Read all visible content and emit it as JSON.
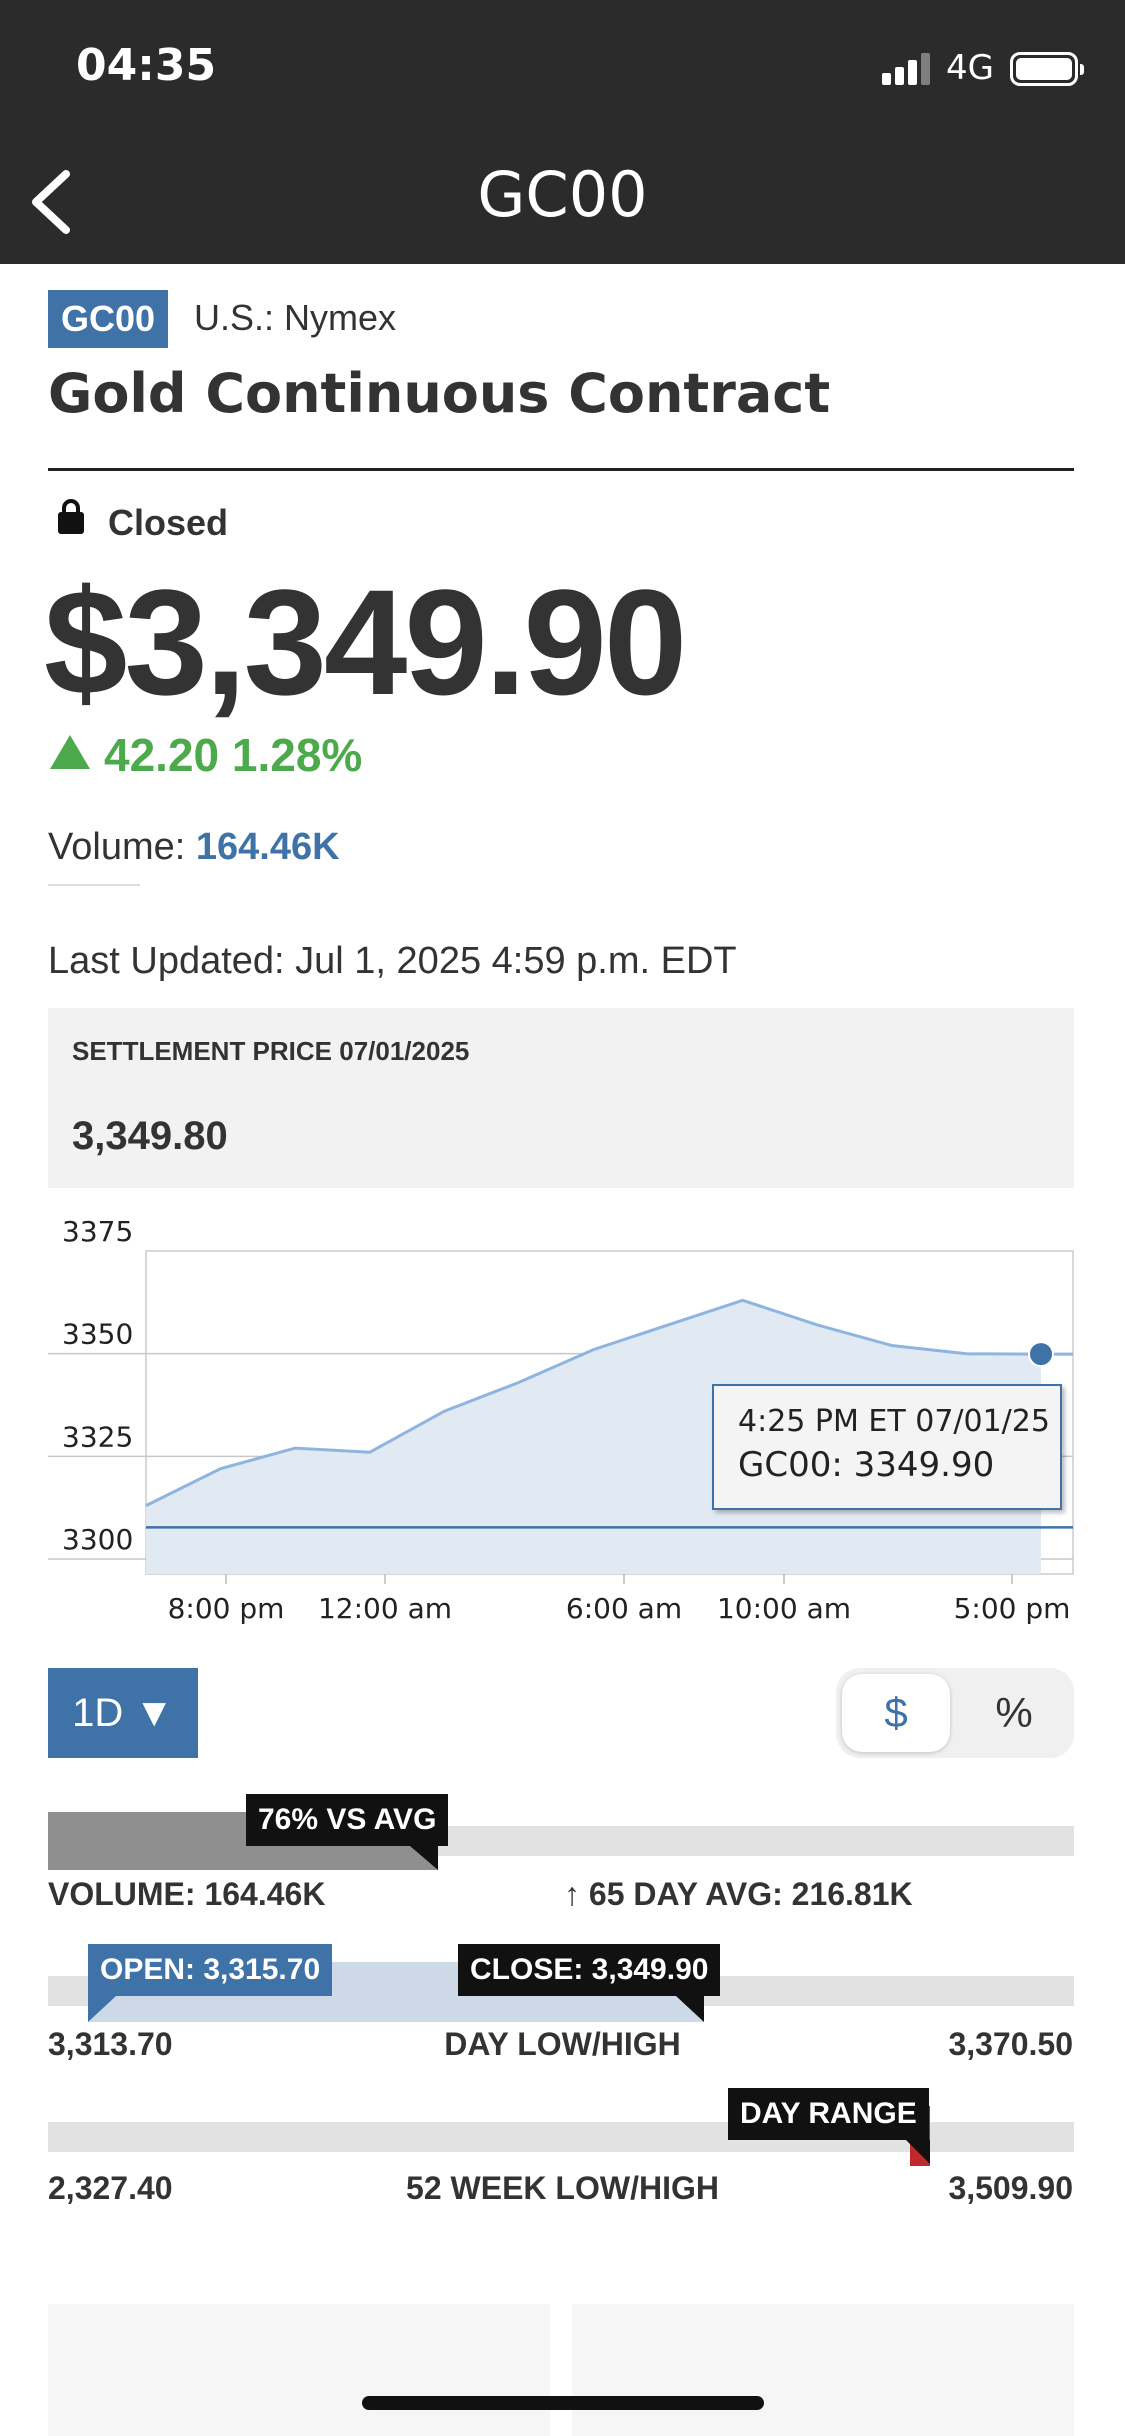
{
  "status_bar": {
    "time": "04:35",
    "network": "4G"
  },
  "nav": {
    "title": "GC00"
  },
  "instrument": {
    "ticker": "GC00",
    "exchange": "U.S.: Nymex",
    "name": "Gold Continuous Contract",
    "market_state": "Closed",
    "price": "$3,349.90",
    "change": "42.20",
    "change_pct": "1.28%",
    "volume_label": "Volume: ",
    "volume_value": "164.46K",
    "last_updated": "Last Updated: Jul 1, 2025 4:59 p.m. EDT"
  },
  "settlement": {
    "label": "SETTLEMENT PRICE 07/01/2025",
    "value": "3,349.80"
  },
  "chart_data": {
    "type": "area",
    "series": [
      {
        "name": "GC00",
        "x": [
          "6:00 pm",
          "8:00 pm",
          "10:00 pm",
          "12:00 am",
          "2:00 am",
          "4:00 am",
          "6:00 am",
          "8:00 am",
          "10:00 am",
          "12:00 pm",
          "2:00 pm",
          "4:25 pm",
          "5:00 pm"
        ],
        "values": [
          3313,
          3322,
          3327,
          3326,
          3336,
          3343,
          3351,
          3357,
          3363,
          3357,
          3352,
          3350,
          3349.9
        ]
      }
    ],
    "x_ticks": [
      "8:00 pm",
      "12:00 am",
      "6:00 am",
      "10:00 am",
      "5:00 pm"
    ],
    "y_ticks": [
      "3375",
      "3350",
      "3325",
      "3300"
    ],
    "ylim": [
      3300,
      3375
    ],
    "baseline": 3307.7,
    "tooltip": {
      "time": "4:25 PM ET 07/01/25",
      "value": "GC00: 3349.90"
    },
    "colors": {
      "line": "#8eb4df",
      "fill": "#e1e9f2",
      "baseline": "#3f72a6"
    }
  },
  "controls": {
    "range": "1D ▼",
    "toggle_dollar": "$",
    "toggle_pct": "%"
  },
  "stats": {
    "vol_flag": "76% VS AVG",
    "vol_fraction": 0.76,
    "volume_label": "VOLUME: 164.46K",
    "avg_label": "↑ 65 DAY AVG: 216.81K",
    "open_flag": "OPEN: 3,315.70",
    "close_flag": "CLOSE: 3,349.90",
    "day_low": "3,313.70",
    "day_mid": "DAY LOW/HIGH",
    "day_high": "3,370.50",
    "range_flag": "DAY RANGE",
    "wk_low": "2,327.40",
    "wk_mid": "52 WEEK LOW/HIGH",
    "wk_high": "3,509.90"
  },
  "colors": {
    "accent": "#3f72a6",
    "positive": "#4caa4c",
    "dark_bar": "#2b2b2b",
    "range_marker": "#c0282b"
  }
}
